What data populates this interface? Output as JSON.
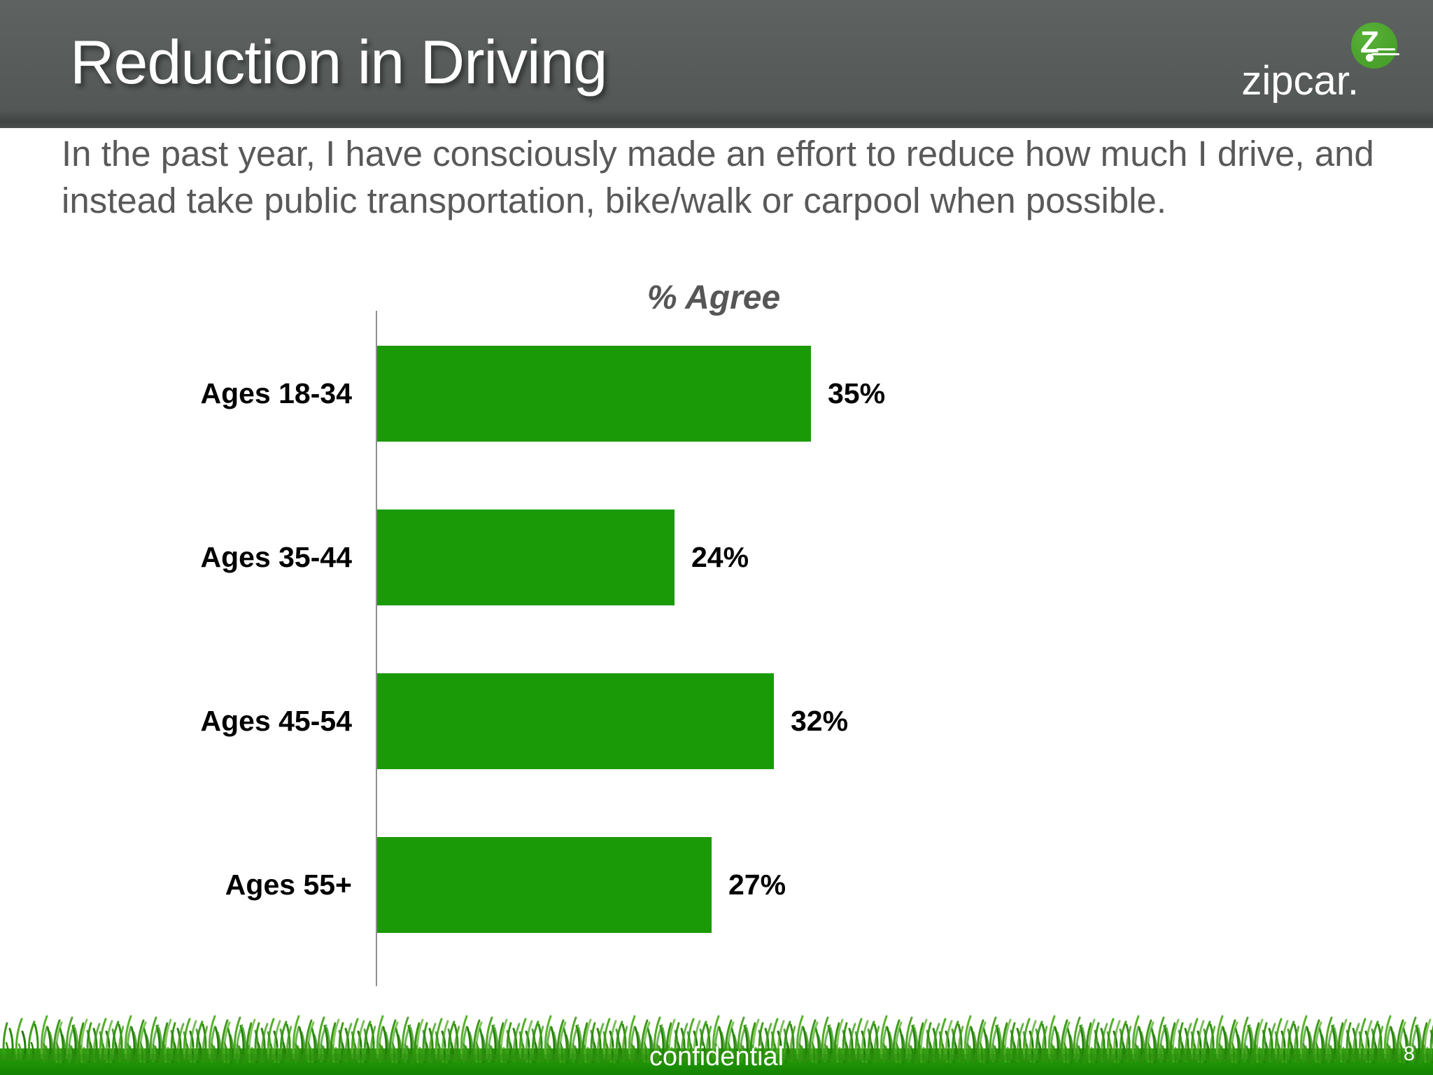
{
  "slide": {
    "title": "Reduction in Driving",
    "body_text": "In the past year, I have consciously made an effort to reduce how much I drive, and instead take public transportation, bike/walk or carpool when possible.",
    "footer_label": "confidential",
    "page_number": "8"
  },
  "logo": {
    "wordmark": "zipcar.",
    "monogram": "Z"
  },
  "chart_data": {
    "type": "bar",
    "orientation": "horizontal",
    "title": "% Agree",
    "categories": [
      "Ages 18-34",
      "Ages 35-44",
      "Ages 45-54",
      "Ages 55+"
    ],
    "values": [
      35,
      24,
      32,
      27
    ],
    "value_labels": [
      "35%",
      "24%",
      "32%",
      "27%"
    ],
    "xlim": [
      0,
      40
    ],
    "grid": false,
    "legend": "none",
    "bar_color": "#1b9a07",
    "axis_color": "#8f8f8f"
  },
  "colors": {
    "header_bg": "#565b59",
    "title_text": "#ffffff",
    "body_text": "#595959",
    "chart_title_text": "#565656",
    "bar_green": "#1b9a07",
    "footer_green_top": "#27a007",
    "footer_green_bottom": "#148202",
    "logo_circle_green": "#4ca32d"
  }
}
